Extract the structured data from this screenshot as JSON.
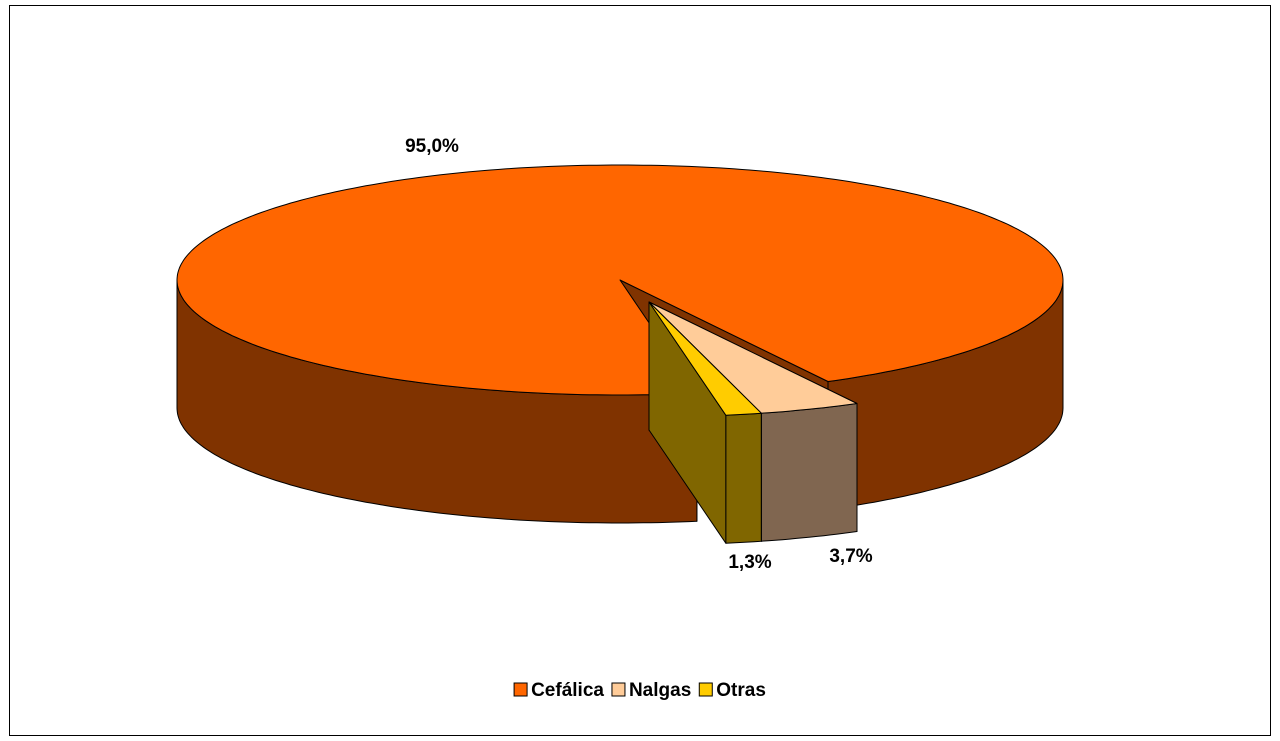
{
  "chart_data": {
    "type": "pie3d",
    "categories": [
      "Cefálica",
      "Nalgas",
      "Otras"
    ],
    "values": [
      95.0,
      3.7,
      1.3
    ],
    "value_labels": [
      "95,0%",
      "3,7%",
      "1,3%"
    ],
    "colors": [
      "#ff6600",
      "#ffcc99",
      "#ffcc00"
    ],
    "side_colors": [
      "#803300",
      "#806650",
      "#806600"
    ],
    "legend": "bottom"
  }
}
